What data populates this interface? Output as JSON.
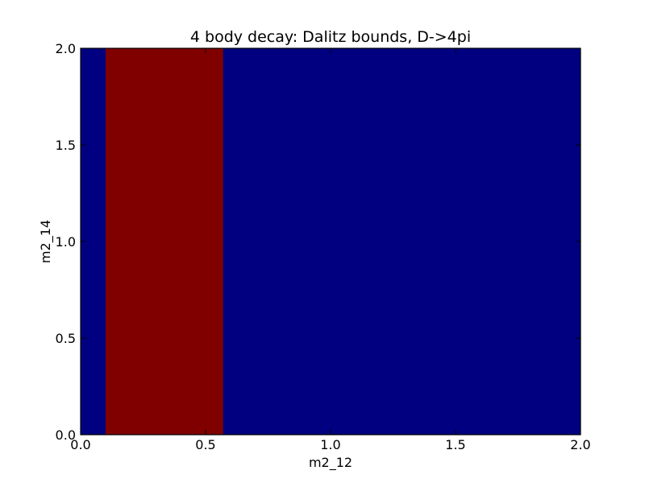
{
  "chart_data": {
    "type": "heatmap",
    "title": "4 body decay: Dalitz bounds, D->4pi",
    "xlabel": "m2_12",
    "ylabel": "m2_14",
    "xlim": [
      0.0,
      2.0
    ],
    "ylim": [
      0.0,
      2.0
    ],
    "x_ticks": [
      "0.0",
      "0.5",
      "1.0",
      "1.5",
      "2.0"
    ],
    "y_ticks": [
      "0.0",
      "0.5",
      "1.0",
      "1.5",
      "2.0"
    ],
    "grid": false,
    "background_color": "#000080",
    "regions": [
      {
        "x_range": [
          0.1,
          0.57
        ],
        "y_range": [
          0.0,
          2.0
        ],
        "color": "#800000"
      }
    ]
  }
}
